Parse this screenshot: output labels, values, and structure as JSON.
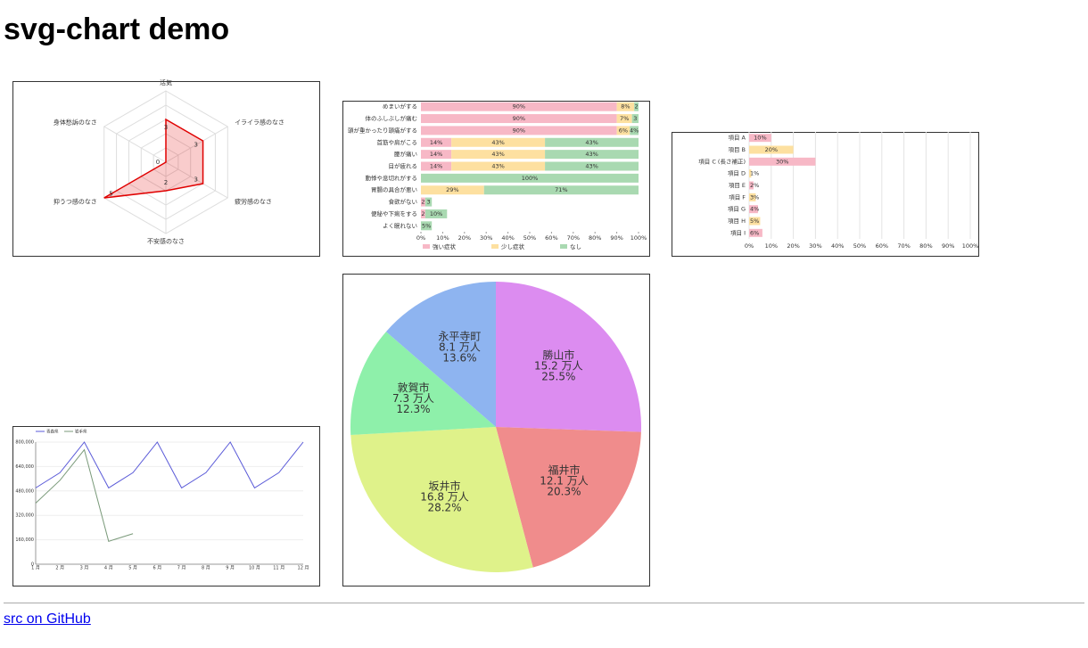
{
  "header": {
    "title": "svg-chart demo"
  },
  "chart_data": [
    {
      "type": "radar",
      "axes": [
        "活気",
        "イライラ感のなさ",
        "疲労感のなさ",
        "不安感のなさ",
        "抑うつ感のなさ",
        "身体愁訴のなさ"
      ],
      "values": [
        3,
        3,
        3,
        2,
        5,
        0
      ],
      "color": "#e00000",
      "rlim": [
        0,
        5
      ],
      "rticks": [
        1,
        2,
        3,
        4,
        5
      ]
    },
    {
      "type": "stacked-bar-horizontal",
      "categories": [
        "めまいがする",
        "体のふしぶしが痛む",
        "頭が重かったり頭痛がする",
        "首筋や肩がこる",
        "腰が痛い",
        "目が疲れる",
        "動悸や息切れがする",
        "胃腸の具合が悪い",
        "食欲がない",
        "便秘や下痢をする",
        "よく眠れない"
      ],
      "series": [
        {
          "name": "強い症状",
          "color": "#f7b8c6",
          "values": [
            90,
            90,
            90,
            14,
            14,
            14,
            0,
            0,
            2,
            2,
            0
          ],
          "value_labels": [
            "90%",
            "90%",
            "90%",
            "14%",
            "14%",
            "14%",
            null,
            null,
            "2",
            "2",
            null
          ]
        },
        {
          "name": "少し症状",
          "color": "#fde0a0",
          "values": [
            8,
            7,
            6,
            43,
            43,
            43,
            0,
            29,
            0,
            0,
            0
          ],
          "value_labels": [
            "8%",
            "7%",
            "6%",
            "43%",
            "43%",
            "43%",
            null,
            "29%",
            null,
            null,
            null
          ]
        },
        {
          "name": "なし",
          "color": "#a9d9b1",
          "values": [
            2,
            3,
            4,
            43,
            43,
            43,
            100,
            71,
            3,
            10,
            5
          ],
          "value_labels": [
            "2",
            "3",
            "4%",
            "43%",
            "43%",
            "43%",
            "100%",
            "71%",
            "3",
            "10%",
            "5%"
          ]
        }
      ],
      "xlim": [
        0,
        100
      ],
      "xticks": [
        {
          "value": 0,
          "label": "0%"
        },
        {
          "value": 10,
          "label": "10%"
        },
        {
          "value": 20,
          "label": "20%"
        },
        {
          "value": 30,
          "label": "30%"
        },
        {
          "value": 40,
          "label": "40%"
        },
        {
          "value": 50,
          "label": "50%"
        },
        {
          "value": 60,
          "label": "60%"
        },
        {
          "value": 70,
          "label": "70%"
        },
        {
          "value": 80,
          "label": "80%"
        },
        {
          "value": 90,
          "label": "90%"
        },
        {
          "value": 100,
          "label": "100%"
        }
      ],
      "legend": "bottom"
    },
    {
      "type": "bar-horizontal",
      "categories": [
        "項目 A",
        "項目 B",
        "項目 C (長さ補正)",
        "項目 D",
        "項目 E",
        "項目 F",
        "項目 G",
        "項目 H",
        "項目 I"
      ],
      "values": [
        10,
        20,
        30,
        1,
        2,
        3,
        4,
        5,
        6
      ],
      "value_labels": [
        "10%",
        "20%",
        "30%",
        "1%",
        "2%",
        "3%",
        "4%",
        "5%",
        "6%"
      ],
      "colors": [
        "#f7b8c6",
        "#fde0a0",
        "#f7b8c6",
        "#fde0a0",
        "#f7b8c6",
        "#fde0a0",
        "#f7b8c6",
        "#fde0a0",
        "#f7b8c6"
      ],
      "xlim": [
        0,
        100
      ],
      "xticks": [
        {
          "value": 0,
          "label": "0%"
        },
        {
          "value": 10,
          "label": "10%"
        },
        {
          "value": 20,
          "label": "20%"
        },
        {
          "value": 30,
          "label": "30%"
        },
        {
          "value": 40,
          "label": "40%"
        },
        {
          "value": 50,
          "label": "50%"
        },
        {
          "value": 60,
          "label": "60%"
        },
        {
          "value": 70,
          "label": "70%"
        },
        {
          "value": 80,
          "label": "80%"
        },
        {
          "value": 90,
          "label": "90%"
        },
        {
          "value": 100,
          "label": "100%"
        }
      ],
      "grid": true
    },
    {
      "type": "line",
      "categories": [
        "1 月",
        "2 月",
        "3 月",
        "4 月",
        "5 月",
        "6 月",
        "7 月",
        "8 月",
        "9 月",
        "10 月",
        "11 月",
        "12 月"
      ],
      "series": [
        {
          "name": "青森県",
          "color": "#5a5ad8",
          "values": [
            500000,
            600000,
            800000,
            500000,
            600000,
            800000,
            500000,
            600000,
            800000,
            500000,
            600000,
            800000
          ]
        },
        {
          "name": "岩手県",
          "color": "#7a9a7a",
          "values": [
            400000,
            550000,
            750000,
            150000,
            200000,
            null,
            null,
            null,
            null,
            null,
            null,
            null
          ]
        }
      ],
      "ylim": [
        0,
        800000
      ],
      "yticks": [
        0,
        {
          "value": 160000,
          "label": "160,000"
        },
        {
          "value": 320000,
          "label": "320,000"
        },
        {
          "value": 480000,
          "label": "480,000"
        },
        {
          "value": 640000,
          "label": "640,000"
        },
        {
          "value": 800000,
          "label": "800,000"
        }
      ],
      "grid": true,
      "legend": "top"
    },
    {
      "type": "pie",
      "categories": [
        "勝山市",
        "福井市",
        "坂井市",
        "敦賀市",
        "永平寺町"
      ],
      "values": [
        15.2,
        12.1,
        16.8,
        7.3,
        8.1
      ],
      "value_labels": [
        "15.2 万人",
        "12.1 万人",
        "16.8 万人",
        "7.3 万人",
        "8.1 万人"
      ],
      "percents": [
        25.5,
        20.3,
        28.2,
        12.3,
        13.6
      ],
      "percent_labels": [
        "25.5%",
        "20.3%",
        "28.2%",
        "12.3%",
        "13.6%"
      ],
      "colors": [
        "#dc8cf0",
        "#f08c8c",
        "#dff28a",
        "#8ef0aa",
        "#8eb4f0"
      ]
    }
  ],
  "footer": {
    "link": "src on GitHub"
  }
}
